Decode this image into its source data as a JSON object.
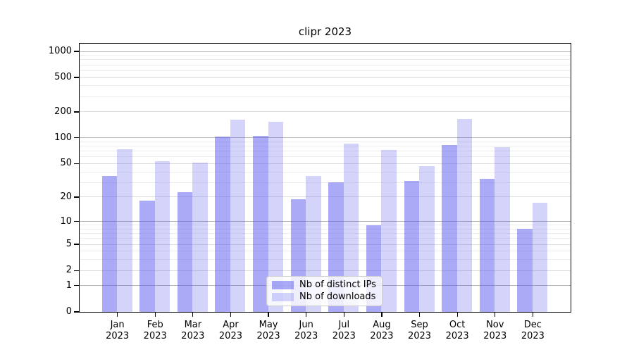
{
  "title": "clipr 2023",
  "legend": {
    "items": [
      {
        "label": "Nb of distinct IPs"
      },
      {
        "label": "Nb of downloads"
      }
    ]
  },
  "colors": {
    "bar_base": "#5555ee",
    "ips_fill": "rgba(85,85,238,0.5)",
    "downloads_fill": "rgba(85,85,238,0.25)",
    "grid_major": "#b4b4b4",
    "grid_mid": "#dcdcdc",
    "grid_minor": "#ededed",
    "axis": "#000000"
  },
  "chart_data": {
    "type": "bar",
    "title": "clipr 2023",
    "categories": [
      "Jan 2023",
      "Feb 2023",
      "Mar 2023",
      "Apr 2023",
      "May 2023",
      "Jun 2023",
      "Jul 2023",
      "Aug 2023",
      "Sep 2023",
      "Oct 2023",
      "Nov 2023",
      "Dec 2023"
    ],
    "x_tick_months": [
      "Jan",
      "Feb",
      "Mar",
      "Apr",
      "May",
      "Jun",
      "Jul",
      "Aug",
      "Sep",
      "Oct",
      "Nov",
      "Dec"
    ],
    "x_tick_year": "2023",
    "series": [
      {
        "name": "Nb of distinct IPs",
        "values": [
          36,
          18,
          23,
          104,
          106,
          19,
          30,
          9,
          31,
          83,
          33,
          8
        ]
      },
      {
        "name": "Nb of downloads",
        "values": [
          74,
          53,
          51,
          163,
          153,
          36,
          86,
          72,
          47,
          167,
          78,
          17
        ]
      }
    ],
    "y_ticks": [
      0,
      1,
      2,
      5,
      10,
      20,
      50,
      100,
      200,
      500,
      1000
    ],
    "y_scale": "log10(1+v)",
    "ylim": [
      0,
      1250
    ],
    "xlabel": "",
    "ylabel": "",
    "grid": "horizontal",
    "legend_position": "lower-center"
  }
}
